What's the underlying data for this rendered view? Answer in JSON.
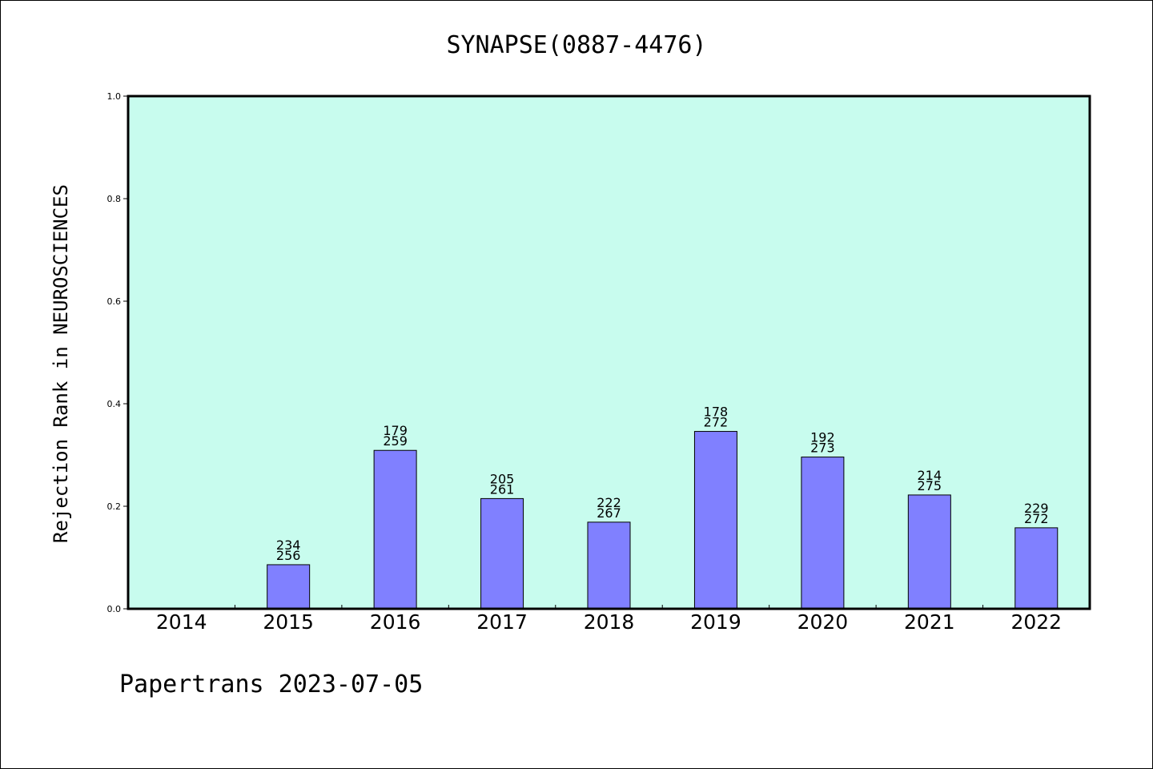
{
  "chart_data": {
    "type": "bar",
    "title": "SYNAPSE(0887-4476)",
    "ylabel": "Rejection Rank in NEUROSCIENCES",
    "xlabel": "",
    "ylim": [
      0,
      1.0
    ],
    "yticks": [
      "0.0",
      "0.2",
      "0.4",
      "0.6",
      "0.8",
      "1.0"
    ],
    "grid": false,
    "categories": [
      "2014",
      "2015",
      "2016",
      "2017",
      "2018",
      "2019",
      "2020",
      "2021",
      "2022"
    ],
    "values": [
      null,
      0.086,
      0.309,
      0.215,
      0.169,
      0.346,
      0.296,
      0.222,
      0.158
    ],
    "labels": [
      null,
      [
        "234",
        "256"
      ],
      [
        "179",
        "259"
      ],
      [
        "205",
        "261"
      ],
      [
        "222",
        "267"
      ],
      [
        "178",
        "272"
      ],
      [
        "192",
        "273"
      ],
      [
        "214",
        "275"
      ],
      [
        "229",
        "272"
      ]
    ],
    "colors": {
      "plot_bg": "#c8fcee",
      "bar": "#8080ff",
      "axis": "#000000"
    }
  },
  "footer": "Papertrans 2023-07-05"
}
